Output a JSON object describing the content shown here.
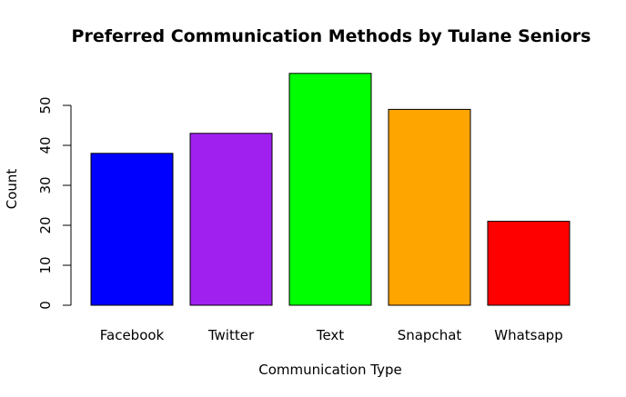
{
  "chart_data": {
    "type": "bar",
    "title": "Preferred Communication Methods by Tulane Seniors",
    "xlabel": "Communication Type",
    "ylabel": "Count",
    "categories": [
      "Facebook",
      "Twitter",
      "Text",
      "Snapchat",
      "Whatsapp"
    ],
    "values": [
      38,
      43,
      58,
      49,
      21
    ],
    "colors": [
      "#0000ff",
      "#a020f0",
      "#00ff00",
      "#ffa500",
      "#ff0000"
    ],
    "yticks": [
      0,
      10,
      20,
      30,
      40,
      50
    ],
    "ylim": [
      0,
      58
    ],
    "grid": false,
    "legend": "none"
  }
}
